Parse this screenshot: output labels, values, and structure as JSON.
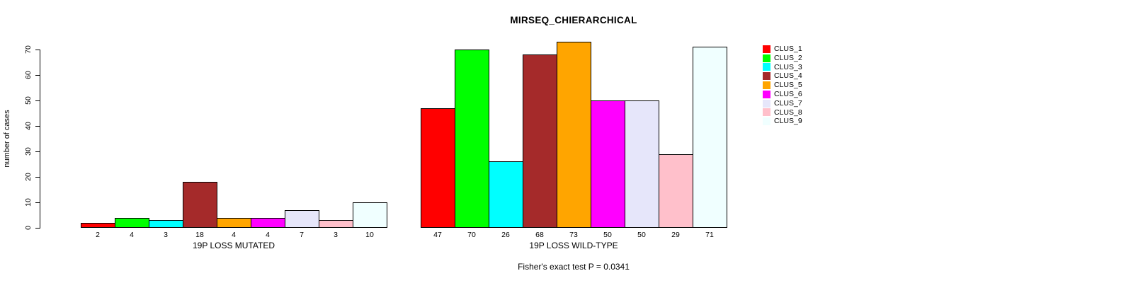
{
  "title": "MIRSEQ_CHIERARCHICAL",
  "chart_data": {
    "type": "bar",
    "title": "MIRSEQ_CHIERARCHICAL",
    "ylabel": "number of cases",
    "xlabel": "",
    "ylim": [
      0,
      70
    ],
    "yticks": [
      0,
      10,
      20,
      30,
      40,
      50,
      60,
      70
    ],
    "grid": "off",
    "legend_position": "right",
    "categories": [
      "CLUS_1",
      "CLUS_2",
      "CLUS_3",
      "CLUS_4",
      "CLUS_5",
      "CLUS_6",
      "CLUS_7",
      "CLUS_8",
      "CLUS_9"
    ],
    "colors": [
      "#FF0000",
      "#00FF00",
      "#00FFFF",
      "#A52A2A",
      "#FFA500",
      "#FF00FF",
      "#E6E6FA",
      "#FFC0CB",
      "#F0FFFF"
    ],
    "groups": [
      {
        "label": "19P LOSS MUTATED",
        "values": [
          2,
          4,
          3,
          18,
          4,
          4,
          7,
          3,
          10
        ]
      },
      {
        "label": "19P LOSS WILD-TYPE",
        "values": [
          47,
          70,
          26,
          68,
          73,
          50,
          50,
          29,
          71
        ]
      }
    ],
    "bar_value_labels_shown": true,
    "annotation": "Fisher's exact test P = 0.0341"
  }
}
